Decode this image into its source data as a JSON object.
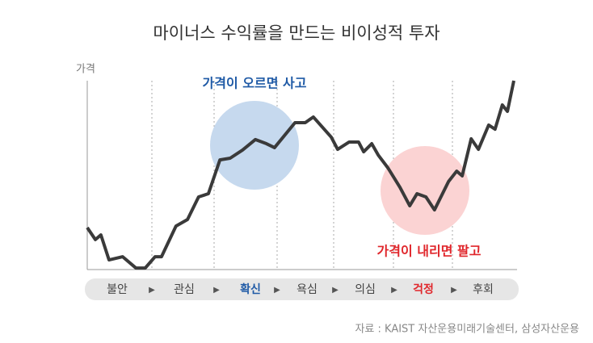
{
  "chart_data": {
    "type": "line",
    "title": "마이너스 수익률을 만드는 비이성적 투자",
    "y_label": "가격",
    "source": "자료 : KAIST 자산운용미래기술센터, 삼성자산운용",
    "annotations": [
      "가격이 오르면 사고",
      "가격이 내리면 팔고"
    ],
    "categories": [
      "불안",
      "관심",
      "확신",
      "욕심",
      "의심",
      "걱정",
      "후회"
    ],
    "xlim": [
      0,
      100
    ],
    "ylim": [
      0,
      100
    ],
    "series": [
      {
        "name": "가격",
        "color": "#3a3a3a",
        "x": [
          0,
          1.9,
          3.2,
          5.1,
          8.3,
          11.4,
          13.6,
          15.9,
          17.4,
          20.8,
          23.5,
          26.1,
          28.4,
          31.1,
          33.5,
          36.4,
          39.4,
          42.0,
          43.9,
          48.7,
          51.1,
          53.0,
          57.2,
          58.7,
          61.4,
          63.6,
          64.8,
          66.7,
          68.2,
          70.5,
          73.3,
          75.6,
          77.3,
          79.4,
          81.4,
          84.7,
          86.6,
          87.9,
          90.0,
          91.7,
          94.1,
          95.6,
          97.3,
          98.5,
          100
        ],
        "values": [
          21.9,
          15.5,
          18.0,
          4.7,
          6.4,
          0.4,
          0.4,
          6.4,
          6.4,
          22.7,
          26.2,
          38.2,
          39.9,
          57.9,
          58.8,
          63.1,
          68.7,
          66.5,
          64.4,
          77.7,
          77.7,
          80.7,
          70.0,
          63.5,
          67.4,
          67.4,
          62.2,
          66.5,
          60.5,
          53.6,
          43.3,
          33.5,
          39.9,
          38.2,
          31.3,
          46.4,
          51.9,
          49.4,
          69.1,
          63.5,
          76.4,
          74.2,
          87.1,
          83.7,
          100
        ]
      }
    ]
  }
}
